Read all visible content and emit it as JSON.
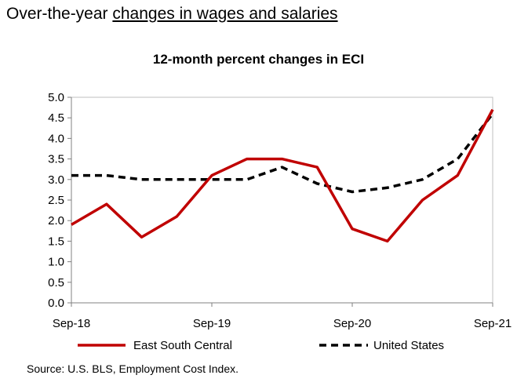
{
  "header": {
    "prefix": "Over-the-year ",
    "link_text": "changes in wages and salaries"
  },
  "source": "Source: U.S. BLS, Employment Cost Index.",
  "chart_data": {
    "type": "line",
    "title": "12-month percent changes in ECI",
    "xlabel": "",
    "ylabel": "",
    "x": [
      "Sep-18",
      "Dec-18",
      "Mar-19",
      "Jun-19",
      "Sep-19",
      "Dec-19",
      "Mar-20",
      "Jun-20",
      "Sep-20",
      "Dec-20",
      "Mar-21",
      "Jun-21",
      "Sep-21"
    ],
    "x_tick_labels": [
      "Sep-18",
      "Sep-19",
      "Sep-20",
      "Sep-21"
    ],
    "ylim": [
      0,
      5.0
    ],
    "y_ticks": [
      "0.0",
      "0.5",
      "1.0",
      "1.5",
      "2.0",
      "2.5",
      "3.0",
      "3.5",
      "4.0",
      "4.5",
      "5.0"
    ],
    "grid": false,
    "legend": "bottom",
    "series": [
      {
        "name": "East South Central",
        "color": "#c00000",
        "style": "solid",
        "values": [
          1.9,
          2.4,
          1.6,
          2.1,
          3.1,
          3.5,
          3.5,
          3.3,
          1.8,
          1.5,
          2.5,
          3.1,
          4.7
        ]
      },
      {
        "name": "United States",
        "color": "#000000",
        "style": "dashed",
        "values": [
          3.1,
          3.1,
          3.0,
          3.0,
          3.0,
          3.0,
          3.3,
          2.9,
          2.7,
          2.8,
          3.0,
          3.5,
          4.6
        ]
      }
    ]
  }
}
